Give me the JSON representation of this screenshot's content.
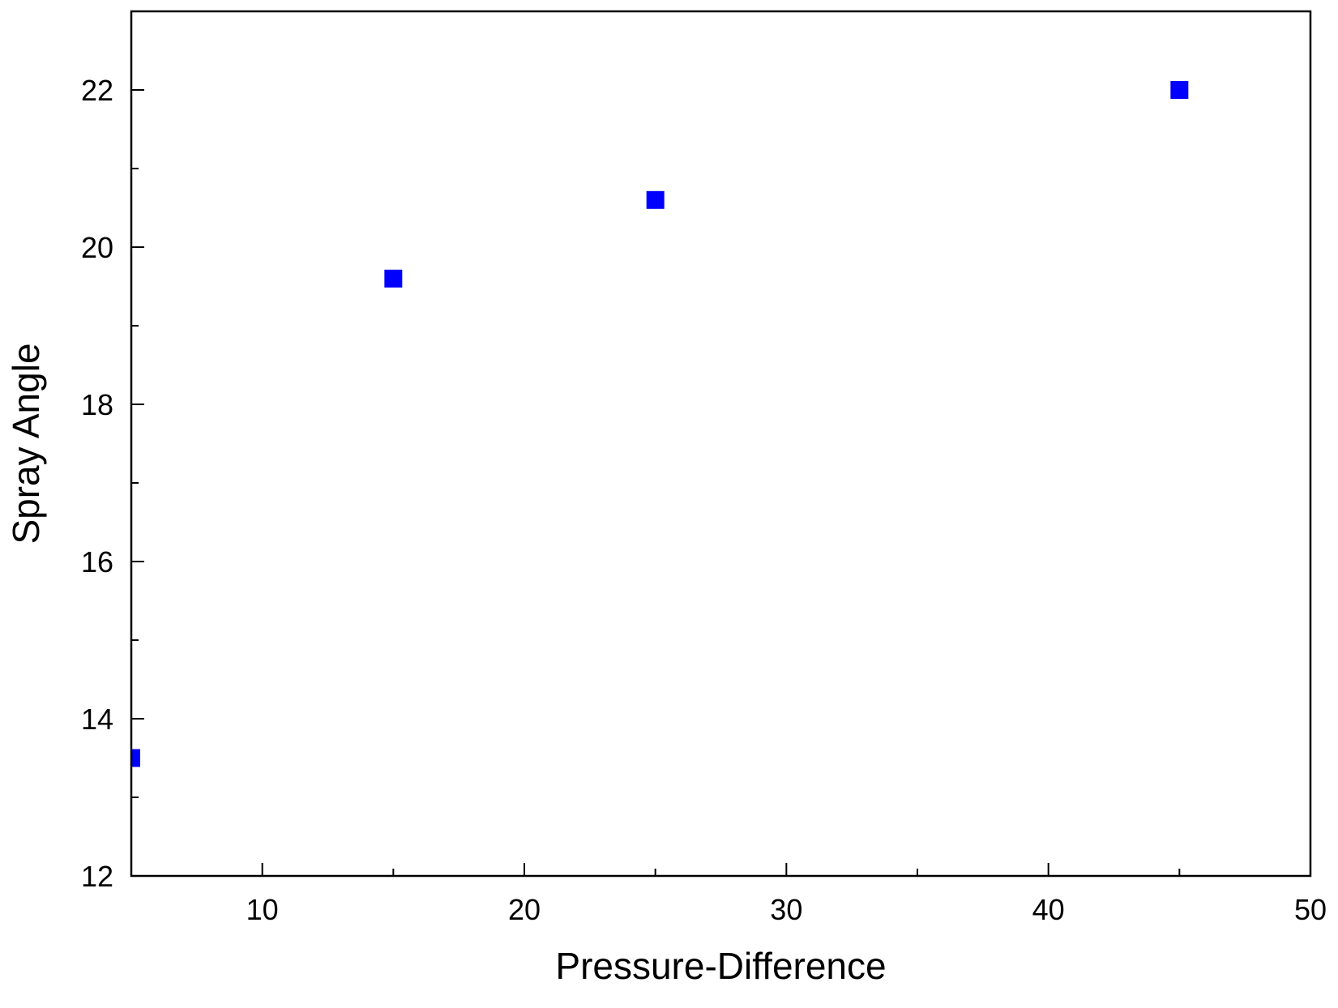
{
  "chart_data": {
    "type": "scatter",
    "title": "",
    "xlabel": "Pressure-Difference",
    "ylabel": "Spray Angle",
    "xlim": [
      5,
      50
    ],
    "ylim": [
      12,
      23
    ],
    "x_ticks_major": [
      10,
      20,
      30,
      40,
      50
    ],
    "x_ticks_minor": [
      15,
      25,
      35,
      45
    ],
    "y_ticks_major": [
      12,
      14,
      16,
      18,
      20,
      22
    ],
    "y_ticks_minor": [
      13,
      15,
      17,
      19,
      21
    ],
    "grid": false,
    "legend": "none",
    "marker": "square",
    "marker_color": "#0000ff",
    "series": [
      {
        "x": [
          5,
          15,
          25,
          45
        ],
        "y": [
          13.5,
          19.6,
          20.6,
          22.0
        ]
      }
    ]
  }
}
